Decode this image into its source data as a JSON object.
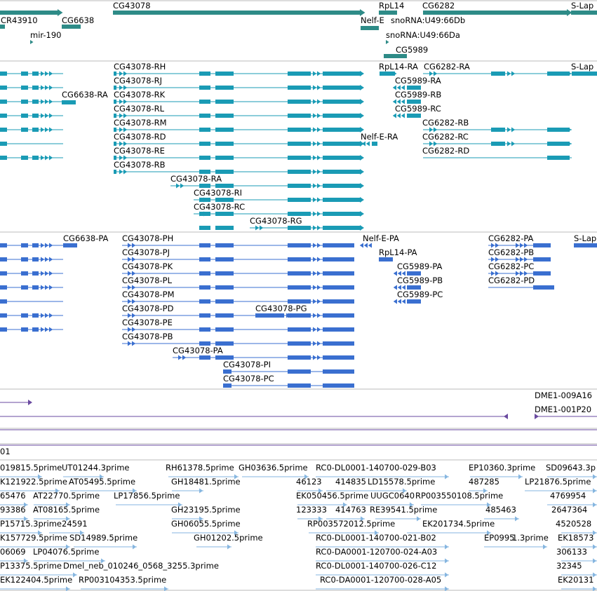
{
  "colors": {
    "gene": "#2e8b87",
    "rna": "#1a9bb5",
    "protein": "#3a6fd0",
    "clone": "#6a4aa0",
    "est": "#86b6e0",
    "separator": "#bbbbbb",
    "background": "#ffffff"
  },
  "tracks": {
    "genes": {
      "labels": [
        "CG43078",
        "RpL14",
        "CG6282",
        "S-Lap",
        "CR43910",
        "CG6638",
        "Nelf-E",
        "snoRNA:U49:66Db",
        "mir-190",
        "snoRNA:U49:66Da",
        "CG5989"
      ]
    },
    "transcripts": {
      "labels": [
        "CG43078-RH",
        "RpL14-RA",
        "CG6282-RA",
        "S-Lap",
        "CG43078-RJ",
        "CG5989-RA",
        "CG6638-RA",
        "CG43078-RK",
        "CG5989-RB",
        "CG43078-RL",
        "CG5989-RC",
        "CG43078-RM",
        "CG6282-RB",
        "CG43078-RD",
        "Nelf-E-RA",
        "CG6282-RC",
        "CG43078-RE",
        "CG6282-RD",
        "CG43078-RB",
        "CG43078-RA",
        "CG43078-RI",
        "CG43078-RC",
        "CG43078-RG"
      ]
    },
    "proteins": {
      "labels": [
        "CG6638-PA",
        "CG43078-PH",
        "Nelf-E-PA",
        "CG6282-PA",
        "S-Lap",
        "CG43078-PJ",
        "RpL14-PA",
        "CG6282-PB",
        "CG43078-PK",
        "CG5989-PA",
        "CG6282-PC",
        "CG43078-PL",
        "CG5989-PB",
        "CG6282-PD",
        "CG43078-PM",
        "CG5989-PC",
        "CG43078-PD",
        "CG43078-PG",
        "CG43078-PE",
        "CG43078-PB",
        "CG43078-PA",
        "CG43078-PI",
        "CG43078-PC"
      ]
    },
    "clones": {
      "labels": [
        "DME1-009A16",
        "DME1-001P20",
        "01"
      ]
    },
    "ests": {
      "labels": [
        "019815.5prime",
        "UT01244.3prime",
        "RH61378.5prime",
        "GH03636.5prime",
        "RC0-DL0001-140700-029-B03",
        "EP10360.3prime",
        "SD09643.3p",
        "K121922.5prime",
        "AT05495.5prime",
        "GH18481.5prime",
        "46123",
        "414835",
        "LD15578.5prime",
        "487285",
        "LP21876.5prime",
        "65476",
        "AT22770.5prime",
        "LP17856.5prime",
        "EK050456.5prime",
        "UUGC0640",
        "RP003550108.5prime",
        "4769954",
        "93386",
        "AT08165.5prime",
        "GH23195.5prime",
        "123333",
        "414763",
        "RE39541.5prime",
        "485463",
        "2647364",
        "P15715.3prime",
        "24591",
        "GH06055.5prime",
        "RP003572012.5prime",
        "EK201734.5prime",
        "4520528",
        "K157729.5prime",
        "SD14989.5prime",
        "GH01202.5prime",
        "RC0-DL0001-140700-021-B02",
        "EP0995",
        "1.3prime",
        "EK18573",
        "06069",
        "LP04076.5prime",
        "RC0-DA0001-120700-024-A03",
        "306133",
        "P13375.5prime",
        "Dmel_neb_010246_0568_3255.3prime",
        "RC0-DL0001-140700-026-C12",
        "32345",
        "EK122404.5prime",
        "RP003104353.5prime",
        "RC0-DA0001-120700-028-A05",
        "EK20131"
      ]
    }
  }
}
